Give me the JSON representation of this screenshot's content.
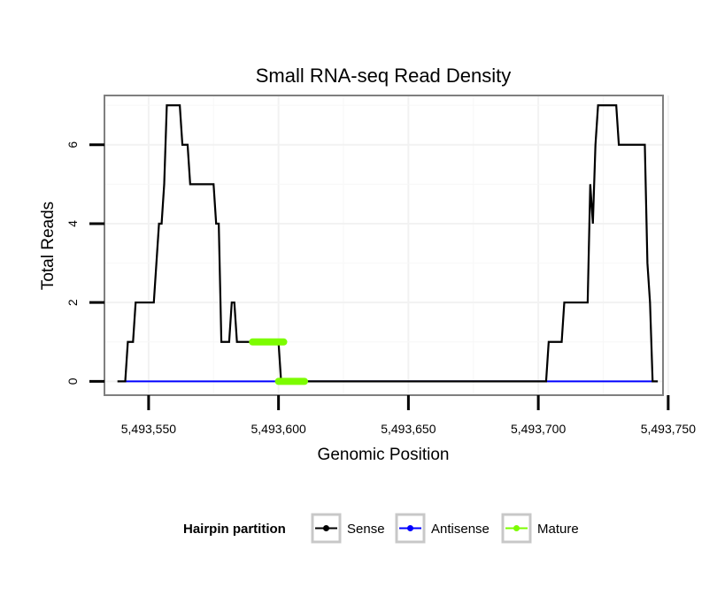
{
  "chart_data": {
    "type": "line",
    "title": "Small RNA-seq Read Density",
    "xlabel": "Genomic Position",
    "ylabel": "Total Reads",
    "xlim": [
      5493533,
      5493748
    ],
    "ylim": [
      -0.35,
      7.25
    ],
    "x_ticks": [
      5493550,
      5493600,
      5493650,
      5493700,
      5493750
    ],
    "x_tick_labels": [
      "5,493,550",
      "5,493,600",
      "5,493,650",
      "5,493,700",
      "5,493,750"
    ],
    "y_ticks": [
      0,
      2,
      4,
      6
    ],
    "y_tick_labels": [
      "0",
      "2",
      "4",
      "6"
    ],
    "grid": true,
    "legend": {
      "title": "Hairpin partition",
      "position": "bottom",
      "entries": [
        {
          "label": "Sense",
          "color": "#000000"
        },
        {
          "label": "Antisense",
          "color": "#0000ff"
        },
        {
          "label": "Mature",
          "color": "#7cfc00"
        }
      ]
    },
    "series": [
      {
        "name": "Sense",
        "color": "#000000",
        "points": [
          [
            5493538,
            0
          ],
          [
            5493541,
            0
          ],
          [
            5493542,
            1
          ],
          [
            5493544,
            1
          ],
          [
            5493545,
            2
          ],
          [
            5493552,
            2
          ],
          [
            5493553,
            3
          ],
          [
            5493554,
            4
          ],
          [
            5493555,
            4
          ],
          [
            5493556,
            5
          ],
          [
            5493557,
            7
          ],
          [
            5493562,
            7
          ],
          [
            5493563,
            6
          ],
          [
            5493565,
            6
          ],
          [
            5493566,
            5
          ],
          [
            5493575,
            5
          ],
          [
            5493576,
            4
          ],
          [
            5493577,
            4
          ],
          [
            5493578,
            1
          ],
          [
            5493581,
            1
          ],
          [
            5493582,
            2
          ],
          [
            5493583,
            2
          ],
          [
            5493584,
            1
          ],
          [
            5493600,
            1
          ],
          [
            5493601,
            0
          ],
          [
            5493703,
            0
          ],
          [
            5493704,
            1
          ],
          [
            5493709,
            1
          ],
          [
            5493710,
            2
          ],
          [
            5493719,
            2
          ],
          [
            5493720,
            5
          ],
          [
            5493721,
            4
          ],
          [
            5493722,
            6
          ],
          [
            5493723,
            7
          ],
          [
            5493730,
            7
          ],
          [
            5493731,
            6
          ],
          [
            5493741,
            6
          ],
          [
            5493742,
            3
          ],
          [
            5493743,
            2
          ],
          [
            5493744,
            0
          ],
          [
            5493746,
            0
          ]
        ]
      },
      {
        "name": "Antisense",
        "color": "#0000ff",
        "points": [
          [
            5493541,
            0
          ],
          [
            5493744,
            0
          ]
        ]
      },
      {
        "name": "Mature",
        "color": "#7cfc00",
        "segments": [
          [
            [
              5493590,
              1
            ],
            [
              5493602,
              1
            ]
          ],
          [
            [
              5493600,
              0
            ],
            [
              5493610,
              0
            ]
          ]
        ]
      }
    ]
  }
}
